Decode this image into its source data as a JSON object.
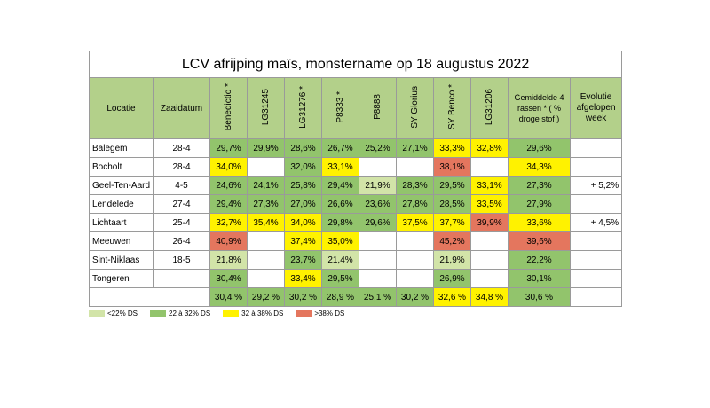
{
  "title": "LCV afrijping maïs, monstername op 18 augustus 2022",
  "header": {
    "location": "Locatie",
    "date": "Zaaidatum",
    "varieties": [
      "Benedictio *",
      "LG31245",
      "LG31276 *",
      "P8333 *",
      "P8888",
      "SY Glorius",
      "SY Benco *",
      "LG31206"
    ],
    "average": "Gemiddelde 4 rassen * ( % droge stof )",
    "evolution": "Evolutie afgelopen week"
  },
  "rows": [
    {
      "location": "Balegem",
      "date": "28-4",
      "values": [
        "29,7%",
        "29,9%",
        "28,6%",
        "26,7%",
        "25,2%",
        "27,1%",
        "33,3%",
        "32,8%"
      ],
      "colors": [
        "#92c46c",
        "#92c46c",
        "#92c46c",
        "#92c46c",
        "#92c46c",
        "#92c46c",
        "#fff200",
        "#fff200"
      ],
      "average": "29,6%",
      "average_color": "#92c46c",
      "evolution": null
    },
    {
      "location": "Bocholt",
      "date": "28-4",
      "values": [
        "34,0%",
        null,
        "32,0%",
        "33,1%",
        null,
        null,
        "38,1%",
        null
      ],
      "colors": [
        "#fff200",
        null,
        "#92c46c",
        "#fff200",
        null,
        null,
        "#e4765e",
        null
      ],
      "average": "34,3%",
      "average_color": "#fff200",
      "evolution": null
    },
    {
      "location": "Geel-Ten-Aard",
      "date": "4-5",
      "values": [
        "24,6%",
        "24,1%",
        "25,8%",
        "29,4%",
        "21,9%",
        "28,3%",
        "29,5%",
        "33,1%"
      ],
      "colors": [
        "#92c46c",
        "#92c46c",
        "#92c46c",
        "#92c46c",
        "#d2e4a8",
        "#92c46c",
        "#92c46c",
        "#fff200"
      ],
      "average": "27,3%",
      "average_color": "#92c46c",
      "evolution": "+ 5,2%"
    },
    {
      "location": "Lendelede",
      "date": "27-4",
      "values": [
        "29,4%",
        "27,3%",
        "27,0%",
        "26,6%",
        "23,6%",
        "27,8%",
        "28,5%",
        "33,5%"
      ],
      "colors": [
        "#92c46c",
        "#92c46c",
        "#92c46c",
        "#92c46c",
        "#92c46c",
        "#92c46c",
        "#92c46c",
        "#fff200"
      ],
      "average": "27,9%",
      "average_color": "#92c46c",
      "evolution": null
    },
    {
      "location": "Lichtaart",
      "date": "25-4",
      "values": [
        "32,7%",
        "35,4%",
        "34,0%",
        "29,8%",
        "29,6%",
        "37,5%",
        "37,7%",
        "39,9%"
      ],
      "colors": [
        "#fff200",
        "#fff200",
        "#fff200",
        "#92c46c",
        "#92c46c",
        "#fff200",
        "#fff200",
        "#e4765e"
      ],
      "average": "33,6%",
      "average_color": "#fff200",
      "evolution": "+ 4,5%"
    },
    {
      "location": "Meeuwen",
      "date": "26-4",
      "values": [
        "40,9%",
        null,
        "37,4%",
        "35,0%",
        null,
        null,
        "45,2%",
        null
      ],
      "colors": [
        "#e4765e",
        null,
        "#fff200",
        "#fff200",
        null,
        null,
        "#e4765e",
        null
      ],
      "average": "39,6%",
      "average_color": "#e4765e",
      "evolution": null
    },
    {
      "location": "Sint-Niklaas",
      "date": "18-5",
      "values": [
        "21,8%",
        null,
        "23,7%",
        "21,4%",
        null,
        null,
        "21,9%",
        null
      ],
      "colors": [
        "#d2e4a8",
        null,
        "#92c46c",
        "#d2e4a8",
        null,
        null,
        "#d2e4a8",
        null
      ],
      "average": "22,2%",
      "average_color": "#92c46c",
      "evolution": null
    },
    {
      "location": "Tongeren",
      "date": null,
      "values": [
        "30,4%",
        null,
        "33,4%",
        "29,5%",
        null,
        null,
        "26,9%",
        null
      ],
      "colors": [
        "#92c46c",
        null,
        "#fff200",
        "#92c46c",
        null,
        null,
        "#92c46c",
        null
      ],
      "average": "30,1%",
      "average_color": "#92c46c",
      "evolution": null
    }
  ],
  "totals": {
    "values": [
      "30,4 %",
      "29,2 %",
      "30,2 %",
      "28,9 %",
      "25,1 %",
      "30,2 %",
      "32,6 %",
      "34,8 %"
    ],
    "colors": [
      "#92c46c",
      "#92c46c",
      "#92c46c",
      "#92c46c",
      "#92c46c",
      "#92c46c",
      "#fff200",
      "#fff200"
    ],
    "average": "30,6 %",
    "average_color": "#92c46c"
  },
  "legend": [
    {
      "label": "<22% DS",
      "color": "#d2e4a8"
    },
    {
      "label": "22 à 32% DS",
      "color": "#92c46c"
    },
    {
      "label": "32 à 38% DS",
      "color": "#fff200"
    },
    {
      "label": ">38% DS",
      "color": "#e4765e"
    }
  ]
}
